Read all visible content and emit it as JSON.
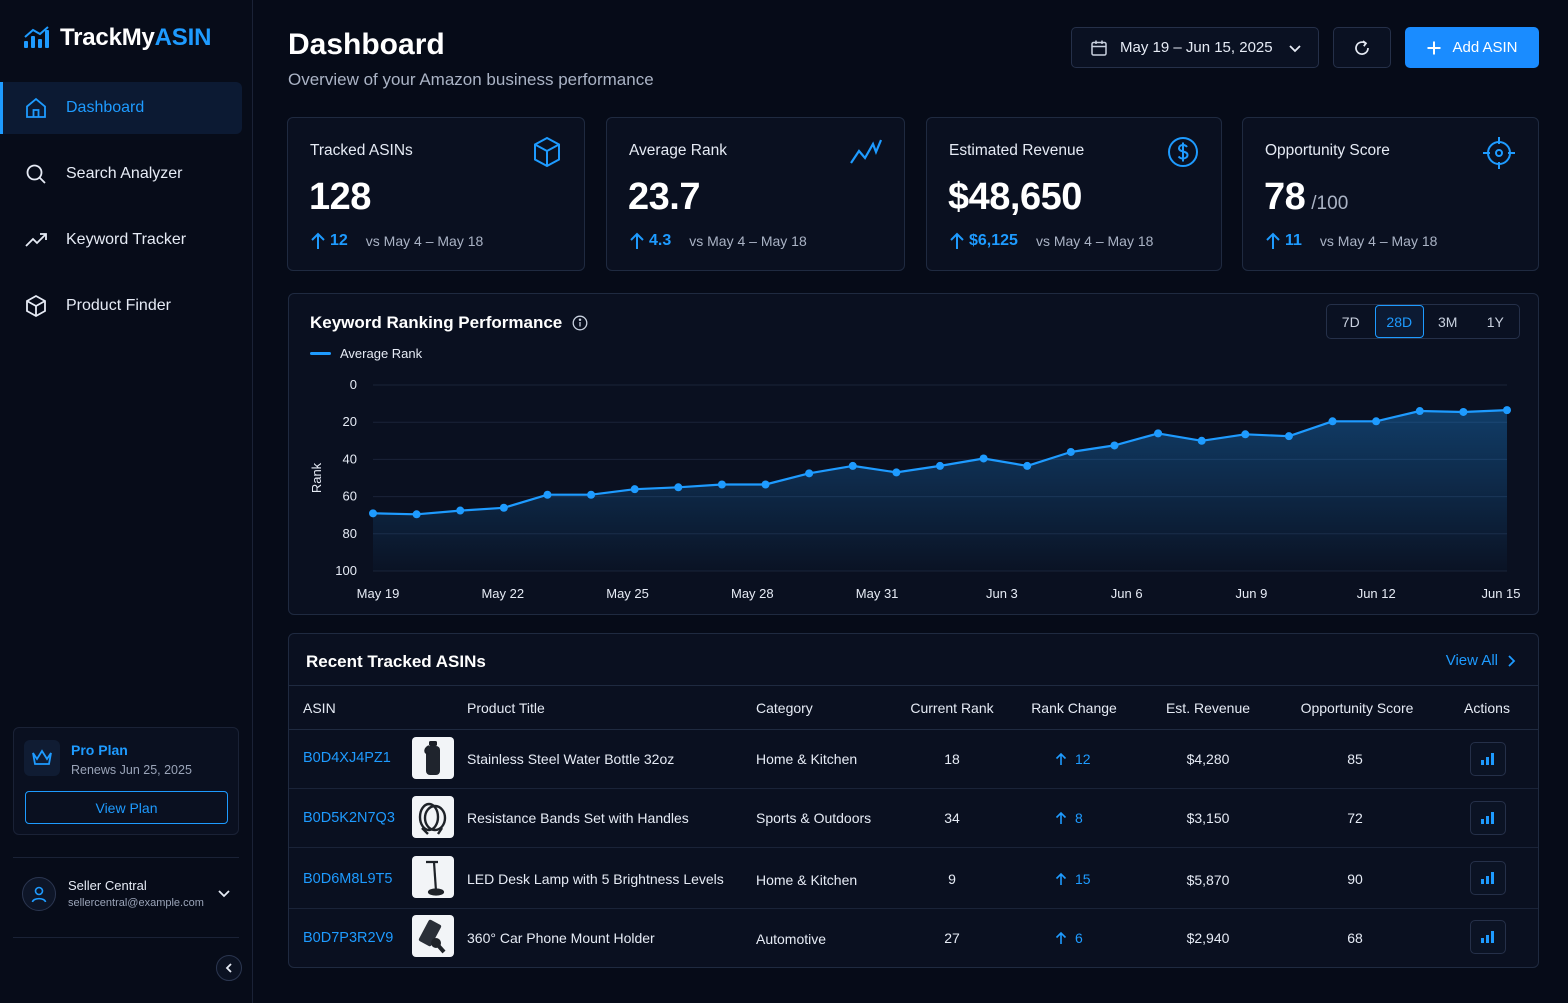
{
  "brand": {
    "name_main": "TrackMy",
    "name_accent": "ASIN"
  },
  "colors": {
    "accent": "#1e9bff",
    "background": "#060b18",
    "panel": "#0a1020"
  },
  "sidebar": {
    "items": [
      {
        "label": "Dashboard",
        "icon": "home-icon",
        "active": true
      },
      {
        "label": "Search Analyzer",
        "icon": "search-icon",
        "active": false
      },
      {
        "label": "Keyword Tracker",
        "icon": "trending-up-icon",
        "active": false
      },
      {
        "label": "Product Finder",
        "icon": "box-icon",
        "active": false
      }
    ],
    "plan": {
      "title": "Pro Plan",
      "renews": "Renews Jun 25, 2025",
      "button": "View Plan",
      "icon": "crown-icon"
    },
    "user": {
      "name": "Seller Central",
      "email": "sellercentral@example.com",
      "icon": "user-icon"
    }
  },
  "header": {
    "title": "Dashboard",
    "subtitle": "Overview of your Amazon business performance",
    "date_range": "May 19 – Jun 15, 2025",
    "add_button": "Add ASIN"
  },
  "kpis": [
    {
      "label": "Tracked ASINs",
      "value": "128",
      "suffix": "",
      "delta": "12",
      "period": "vs May 4 – May 18",
      "icon": "cube-icon"
    },
    {
      "label": "Average Rank",
      "value": "23.7",
      "suffix": "",
      "delta": "4.3",
      "period": "vs May 4 – May 18",
      "icon": "trend-line-icon"
    },
    {
      "label": "Estimated Revenue",
      "value": "$48,650",
      "suffix": "",
      "delta": "$6,125",
      "period": "vs May 4 – May 18",
      "icon": "dollar-circle-icon"
    },
    {
      "label": "Opportunity Score",
      "value": "78",
      "suffix": "/100",
      "delta": "11",
      "period": "vs May 4 – May 18",
      "icon": "target-icon"
    }
  ],
  "chart_panel": {
    "title": "Keyword Ranking Performance",
    "ranges": [
      "7D",
      "28D",
      "3M",
      "1Y"
    ],
    "active_range": "28D"
  },
  "chart_data": {
    "type": "area",
    "ylabel": "Rank",
    "ylim": [
      100,
      0
    ],
    "y_inverted": true,
    "yticks": [
      0,
      20,
      40,
      60,
      80,
      100
    ],
    "xtick_labels": [
      "May 19",
      "May 22",
      "May 25",
      "May 28",
      "May 31",
      "Jun 3",
      "Jun 6",
      "Jun 9",
      "Jun 12",
      "Jun 15"
    ],
    "grid": true,
    "legend": "top-left",
    "series": [
      {
        "name": "Average Rank",
        "color": "#1e9bff",
        "values": [
          69,
          69.5,
          67.5,
          66,
          59,
          59,
          56,
          55,
          53.5,
          53.5,
          47.5,
          43.5,
          47,
          43.5,
          39.5,
          43.5,
          36,
          32.5,
          26,
          30,
          26.5,
          27.5,
          19.5,
          19.5,
          14,
          14.5,
          13.5
        ]
      }
    ]
  },
  "table": {
    "title": "Recent Tracked ASINs",
    "view_all": "View All",
    "columns": [
      "ASIN",
      "Product Title",
      "Category",
      "Current Rank",
      "Rank Change",
      "Est. Revenue",
      "Opportunity Score",
      "Actions"
    ],
    "rows": [
      {
        "asin": "B0D4XJ4PZ1",
        "title": "Stainless Steel Water Bottle 32oz",
        "category": "Home & Kitchen",
        "rank": "18",
        "change": "12",
        "revenue": "$4,280",
        "score": "85",
        "thumb": "bottle-icon"
      },
      {
        "asin": "B0D5K2N7Q3",
        "title": "Resistance Bands Set with Handles",
        "category": "Sports & Outdoors",
        "rank": "34",
        "change": "8",
        "revenue": "$3,150",
        "score": "72",
        "thumb": "bands-icon"
      },
      {
        "asin": "B0D6M8L9T5",
        "title": "LED Desk Lamp with 5 Brightness Levels",
        "category": "Home & Kitchen",
        "rank": "9",
        "change": "15",
        "revenue": "$5,870",
        "score": "90",
        "thumb": "lamp-icon"
      },
      {
        "asin": "B0D7P3R2V9",
        "title": "360° Car Phone Mount Holder",
        "category": "Automotive",
        "rank": "27",
        "change": "6",
        "revenue": "$2,940",
        "score": "68",
        "thumb": "phone-mount-icon"
      }
    ]
  }
}
